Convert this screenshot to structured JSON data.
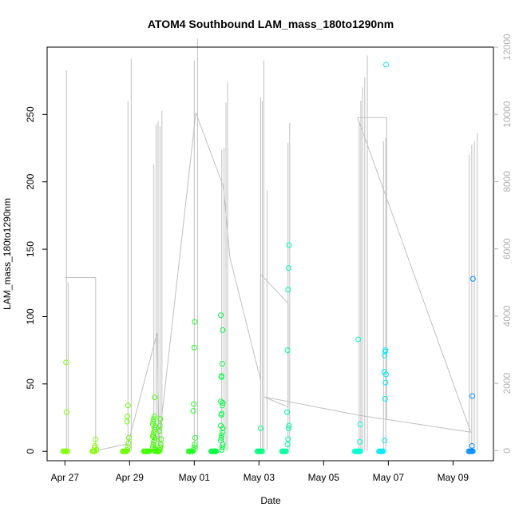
{
  "chart_data": {
    "type": "scatter",
    "title": "ATOM4 Southbound LAM_mass_180to1290nm",
    "xlabel": "Date",
    "ylabel": "LAM_mass_180to1290nm",
    "x_ticks": [
      "Apr 27",
      "Apr 29",
      "May 01",
      "May 03",
      "May 05",
      "May 07",
      "May 09"
    ],
    "x_tick_days": [
      0,
      2,
      4,
      6,
      8,
      10,
      12
    ],
    "xlim_days": [
      -0.55,
      13.25
    ],
    "ylim": [
      -7,
      300
    ],
    "y_ticks": [
      0,
      50,
      100,
      150,
      200,
      250
    ],
    "y2lim": [
      -300,
      12000
    ],
    "y2_ticks": [
      0,
      2000,
      4000,
      6000,
      8000,
      10000,
      12000
    ],
    "points": [
      {
        "day": 0.05,
        "values": [
          0,
          0,
          0,
          0,
          0,
          0,
          66,
          29
        ],
        "color": "#80ff00"
      },
      {
        "day": 0.95,
        "values": [
          0,
          0,
          0,
          0,
          1,
          3,
          4,
          9
        ],
        "color": "#80ff00"
      },
      {
        "day": 1.95,
        "values": [
          0,
          0,
          0,
          0,
          0,
          0,
          1,
          3,
          6,
          10,
          22,
          26,
          34
        ],
        "color": "#6aff00"
      },
      {
        "day": 2.75,
        "values": [
          0,
          0,
          0,
          0,
          0,
          0,
          0,
          0,
          1,
          2,
          3,
          5,
          7,
          8,
          10,
          11,
          12,
          14,
          16,
          18,
          20,
          22,
          24,
          26,
          40
        ],
        "color": "#40ff00"
      },
      {
        "day": 2.95,
        "values": [
          0,
          0,
          0,
          0,
          0,
          0,
          1,
          3,
          5,
          9,
          15,
          19,
          24
        ],
        "color": "#40ff00"
      },
      {
        "day": 4.0,
        "values": [
          0,
          0,
          0,
          0,
          0,
          0,
          1,
          3,
          5,
          10,
          30,
          35,
          77,
          96
        ],
        "color": "#20ff20"
      },
      {
        "day": 4.85,
        "values": [
          0,
          0,
          0,
          0,
          0,
          0,
          0,
          1,
          3,
          5,
          8,
          10,
          12,
          14,
          17,
          19,
          27,
          28,
          34,
          36,
          37,
          55,
          56,
          65,
          90,
          101
        ],
        "color": "#00ff40"
      },
      {
        "day": 6.05,
        "values": [
          0,
          0,
          0,
          0,
          0,
          0,
          0,
          17
        ],
        "color": "#00ff80"
      },
      {
        "day": 6.9,
        "values": [
          0,
          0,
          0,
          0,
          0,
          0,
          5,
          9,
          17,
          19,
          29,
          75,
          120,
          136,
          153
        ],
        "color": "#00ffa0"
      },
      {
        "day": 9.1,
        "values": [
          0,
          0,
          0,
          0,
          0,
          0,
          0,
          0,
          7,
          20,
          83
        ],
        "color": "#00ffd0"
      },
      {
        "day": 9.9,
        "values": [
          0,
          0,
          0,
          0,
          0,
          0,
          8,
          39,
          51,
          57,
          59,
          71,
          74,
          75,
          287
        ],
        "color": "#00e8ff"
      },
      {
        "day": 12.6,
        "values": [
          0,
          0,
          0,
          0,
          0,
          0,
          4,
          41,
          128
        ],
        "color": "#0090ff"
      }
    ],
    "secondary_series": {
      "name": "",
      "color": "#c0c0c0",
      "spikes": [
        {
          "day": 0.05,
          "peak": 11300
        },
        {
          "day": 0.1,
          "peak": 5000
        },
        {
          "day": 1.95,
          "peak": 10400
        },
        {
          "day": 2.05,
          "peak": 11650
        },
        {
          "day": 2.75,
          "peak": 8500
        },
        {
          "day": 2.82,
          "peak": 9700
        },
        {
          "day": 2.88,
          "peak": 9800
        },
        {
          "day": 2.94,
          "peak": 9650
        },
        {
          "day": 3.0,
          "peak": 10100
        },
        {
          "day": 4.0,
          "peak": 11600
        },
        {
          "day": 4.1,
          "peak": 12250
        },
        {
          "day": 4.85,
          "peak": 8950
        },
        {
          "day": 4.92,
          "peak": 9000
        },
        {
          "day": 4.98,
          "peak": 10350
        },
        {
          "day": 5.03,
          "peak": 10950
        },
        {
          "day": 6.05,
          "peak": 10500
        },
        {
          "day": 6.1,
          "peak": 10400
        },
        {
          "day": 6.15,
          "peak": 11600
        },
        {
          "day": 6.25,
          "peak": 7750
        },
        {
          "day": 6.9,
          "peak": 9150
        },
        {
          "day": 6.95,
          "peak": 9750
        },
        {
          "day": 9.1,
          "peak": 9800
        },
        {
          "day": 9.15,
          "peak": 10400
        },
        {
          "day": 9.2,
          "peak": 10800
        },
        {
          "day": 9.27,
          "peak": 11100
        },
        {
          "day": 9.35,
          "peak": 11750
        },
        {
          "day": 9.85,
          "peak": 9200
        },
        {
          "day": 9.92,
          "peak": 9300
        },
        {
          "day": 12.5,
          "peak": 8800
        },
        {
          "day": 12.58,
          "peak": 9100
        },
        {
          "day": 12.66,
          "peak": 9200
        },
        {
          "day": 12.75,
          "peak": 9450
        }
      ],
      "path": [
        [
          0.0,
          5150
        ],
        [
          0.95,
          5150
        ],
        [
          0.95,
          0
        ],
        [
          1.95,
          200
        ],
        [
          2.85,
          3500
        ],
        [
          2.9,
          900
        ],
        [
          2.9,
          200
        ],
        [
          4.05,
          10050
        ],
        [
          4.9,
          7850
        ],
        [
          5.1,
          5750
        ],
        [
          6.05,
          2100
        ],
        [
          6.05,
          5250
        ],
        [
          6.9,
          4380
        ],
        [
          6.9,
          1300
        ],
        [
          6.15,
          1600
        ],
        [
          9.1,
          1050
        ],
        [
          12.55,
          550
        ],
        [
          9.05,
          9900
        ],
        [
          9.95,
          9900
        ],
        [
          9.95,
          950
        ]
      ]
    }
  }
}
